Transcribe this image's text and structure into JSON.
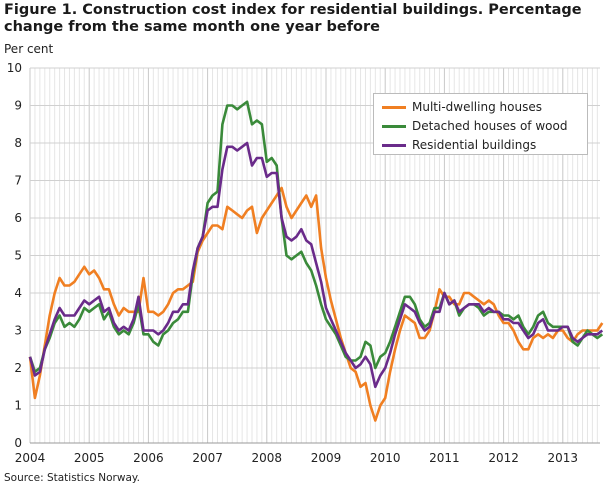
{
  "title": "Figure 1. Construction cost index for residential buildings. Percentage change from the same month one year before",
  "unit_label": "Per cent",
  "source": "Source: Statistics Norway.",
  "chart_data": {
    "type": "line",
    "title": "Figure 1. Construction cost index for residential buildings. Percentage change from the same month one year before",
    "ylabel": "Per cent",
    "xlabel": "",
    "ylim": [
      0,
      10
    ],
    "yticks": [
      "0",
      "1",
      "2",
      "3",
      "4",
      "5",
      "6",
      "7",
      "8",
      "9",
      "10"
    ],
    "xticks": [
      "2004",
      "2005",
      "2006",
      "2007",
      "2008",
      "2009",
      "2010",
      "2011",
      "2012",
      "2013"
    ],
    "start_month": "2004-01",
    "frequency": "monthly",
    "grid": true,
    "legend_position": "top-right",
    "series": [
      {
        "name": "Multi-dwelling houses",
        "color": "#f07f22",
        "values": [
          2.3,
          1.2,
          1.8,
          2.6,
          3.4,
          4.0,
          4.4,
          4.2,
          4.2,
          4.3,
          4.5,
          4.7,
          4.5,
          4.6,
          4.4,
          4.1,
          4.1,
          3.7,
          3.4,
          3.6,
          3.5,
          3.5,
          3.5,
          4.4,
          3.5,
          3.5,
          3.4,
          3.5,
          3.7,
          4.0,
          4.1,
          4.1,
          4.2,
          4.3,
          5.1,
          5.4,
          5.6,
          5.8,
          5.8,
          5.7,
          6.3,
          6.2,
          6.1,
          6.0,
          6.2,
          6.3,
          5.6,
          6.0,
          6.2,
          6.4,
          6.6,
          6.8,
          6.3,
          6.0,
          6.2,
          6.4,
          6.6,
          6.3,
          6.6,
          5.2,
          4.4,
          3.8,
          3.3,
          2.8,
          2.4,
          2.0,
          1.9,
          1.5,
          1.6,
          1.0,
          0.6,
          1.0,
          1.2,
          1.9,
          2.5,
          3.0,
          3.4,
          3.3,
          3.2,
          2.8,
          2.8,
          3.0,
          3.5,
          4.1,
          3.9,
          3.9,
          3.7,
          3.7,
          4.0,
          4.0,
          3.9,
          3.8,
          3.7,
          3.8,
          3.7,
          3.4,
          3.2,
          3.2,
          3.0,
          2.7,
          2.5,
          2.5,
          2.8,
          2.9,
          2.8,
          2.9,
          2.8,
          3.0,
          3.0,
          2.8,
          2.7,
          2.9,
          3.0,
          3.0,
          3.0,
          3.0,
          3.2
        ]
      },
      {
        "name": "Detached houses of wood",
        "color": "#3a8a3a",
        "values": [
          2.3,
          1.9,
          2.0,
          2.5,
          2.8,
          3.2,
          3.4,
          3.1,
          3.2,
          3.1,
          3.3,
          3.6,
          3.5,
          3.6,
          3.7,
          3.3,
          3.5,
          3.1,
          2.9,
          3.0,
          2.9,
          3.2,
          3.7,
          2.9,
          2.9,
          2.7,
          2.6,
          2.9,
          3.0,
          3.2,
          3.3,
          3.5,
          3.5,
          4.5,
          5.2,
          5.5,
          6.4,
          6.6,
          6.7,
          8.5,
          9.0,
          9.0,
          8.9,
          9.0,
          9.1,
          8.5,
          8.6,
          8.5,
          7.5,
          7.6,
          7.4,
          6.0,
          5.0,
          4.9,
          5.0,
          5.1,
          4.8,
          4.6,
          4.2,
          3.7,
          3.3,
          3.1,
          2.9,
          2.6,
          2.3,
          2.2,
          2.2,
          2.3,
          2.7,
          2.6,
          2.0,
          2.3,
          2.4,
          2.7,
          3.1,
          3.5,
          3.9,
          3.9,
          3.7,
          3.3,
          3.1,
          3.2,
          3.6,
          3.6,
          4.0,
          3.7,
          3.8,
          3.4,
          3.6,
          3.7,
          3.7,
          3.6,
          3.4,
          3.5,
          3.5,
          3.5,
          3.4,
          3.4,
          3.3,
          3.4,
          3.1,
          2.9,
          3.1,
          3.4,
          3.5,
          3.2,
          3.1,
          3.1,
          3.1,
          3.1,
          2.7,
          2.6,
          2.8,
          3.0,
          2.9,
          2.8,
          2.9
        ]
      },
      {
        "name": "Residential buildings",
        "color": "#6a2b8a",
        "values": [
          2.3,
          1.8,
          1.9,
          2.5,
          2.9,
          3.3,
          3.6,
          3.4,
          3.4,
          3.4,
          3.6,
          3.8,
          3.7,
          3.8,
          3.9,
          3.5,
          3.6,
          3.2,
          3.0,
          3.1,
          3.0,
          3.3,
          3.9,
          3.0,
          3.0,
          3.0,
          2.9,
          3.0,
          3.2,
          3.5,
          3.5,
          3.7,
          3.7,
          4.6,
          5.2,
          5.5,
          6.2,
          6.3,
          6.3,
          7.3,
          7.9,
          7.9,
          7.8,
          7.9,
          8.0,
          7.4,
          7.6,
          7.6,
          7.1,
          7.2,
          7.2,
          6.0,
          5.5,
          5.4,
          5.5,
          5.7,
          5.4,
          5.3,
          4.8,
          4.3,
          3.6,
          3.3,
          3.0,
          2.7,
          2.4,
          2.2,
          2.0,
          2.1,
          2.3,
          2.1,
          1.5,
          1.8,
          2.0,
          2.4,
          2.9,
          3.3,
          3.7,
          3.6,
          3.5,
          3.2,
          3.0,
          3.1,
          3.5,
          3.5,
          4.0,
          3.7,
          3.8,
          3.5,
          3.6,
          3.7,
          3.7,
          3.7,
          3.5,
          3.6,
          3.5,
          3.5,
          3.3,
          3.3,
          3.2,
          3.2,
          3.0,
          2.8,
          2.9,
          3.2,
          3.3,
          3.0,
          3.0,
          3.0,
          3.1,
          3.1,
          2.8,
          2.7,
          2.8,
          2.9,
          2.9,
          2.9,
          3.0
        ]
      }
    ]
  }
}
